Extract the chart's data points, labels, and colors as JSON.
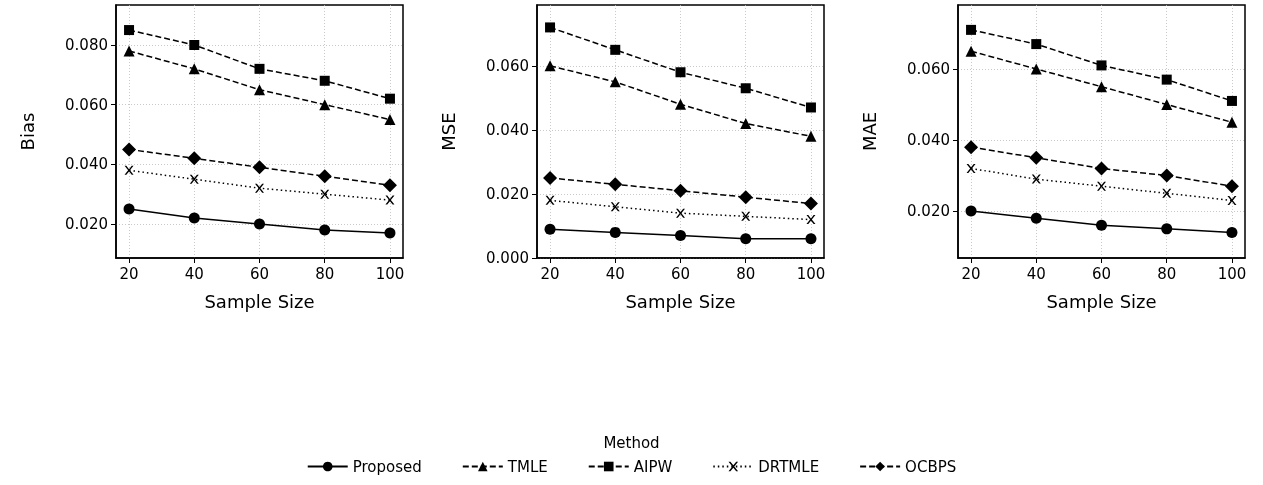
{
  "chart_data": [
    {
      "type": "line",
      "xlabel": "Sample Size",
      "ylabel": "Bias",
      "x": [
        20,
        40,
        60,
        80,
        100
      ],
      "xlim": [
        16,
        104
      ],
      "xticks": [
        20,
        40,
        60,
        80,
        100
      ],
      "ylim": [
        0.0086,
        0.0934
      ],
      "yticks": [
        {
          "value": 0.02,
          "label": "0.020"
        },
        {
          "value": 0.04,
          "label": "0.040"
        },
        {
          "value": 0.06,
          "label": "0.060"
        },
        {
          "value": 0.08,
          "label": "0.080"
        }
      ],
      "grid": true,
      "series": [
        {
          "color": "#000000",
          "marker": "circle",
          "line_style": "solid",
          "values": [
            0.025,
            0.022,
            0.02,
            0.018,
            0.017
          ]
        },
        {
          "color": "#000000",
          "marker": "triangle",
          "line_style": "dashed",
          "values": [
            0.078,
            0.072,
            0.065,
            0.06,
            0.055
          ]
        },
        {
          "color": "#000000",
          "marker": "square",
          "line_style": "dashed",
          "values": [
            0.085,
            0.08,
            0.072,
            0.068,
            0.062
          ]
        },
        {
          "color": "#000000",
          "marker": "cross",
          "line_style": "dotted",
          "values": [
            0.038,
            0.035,
            0.032,
            0.03,
            0.028
          ]
        },
        {
          "color": "#000000",
          "marker": "diamond",
          "line_style": "dashed",
          "values": [
            0.045,
            0.042,
            0.039,
            0.036,
            0.033
          ]
        }
      ]
    },
    {
      "type": "line",
      "xlabel": "Sample Size",
      "ylabel": "MSE",
      "x": [
        20,
        40,
        60,
        80,
        100
      ],
      "xlim": [
        16,
        104
      ],
      "xticks": [
        20,
        40,
        60,
        80,
        100
      ],
      "ylim": [
        0,
        0.079
      ],
      "yticks": [
        {
          "value": 0,
          "label": "0.000"
        },
        {
          "value": 0.02,
          "label": "0.020"
        },
        {
          "value": 0.04,
          "label": "0.040"
        },
        {
          "value": 0.06,
          "label": "0.060"
        }
      ],
      "grid": true,
      "legend": "bottom",
      "legend_title": "Method",
      "series": [
        {
          "name": "Proposed",
          "color": "#000000",
          "marker": "circle",
          "line_style": "solid",
          "values": [
            0.009,
            0.008,
            0.007,
            0.006,
            0.006
          ]
        },
        {
          "name": "TMLE",
          "color": "#000000",
          "marker": "triangle",
          "line_style": "dashed",
          "values": [
            0.06,
            0.055,
            0.048,
            0.042,
            0.038
          ]
        },
        {
          "name": "AIPW",
          "color": "#000000",
          "marker": "square",
          "line_style": "dashed",
          "values": [
            0.072,
            0.065,
            0.058,
            0.053,
            0.047
          ]
        },
        {
          "name": "DRTMLE",
          "color": "#000000",
          "marker": "cross",
          "line_style": "dotted",
          "values": [
            0.018,
            0.016,
            0.014,
            0.013,
            0.012
          ]
        },
        {
          "name": "OCBPS",
          "color": "#000000",
          "marker": "diamond",
          "line_style": "dashed",
          "values": [
            0.025,
            0.023,
            0.021,
            0.019,
            0.017
          ]
        }
      ]
    },
    {
      "type": "line",
      "xlabel": "Sample Size",
      "ylabel": "MAE",
      "x": [
        20,
        40,
        60,
        80,
        100
      ],
      "xlim": [
        16,
        104
      ],
      "xticks": [
        20,
        40,
        60,
        80,
        100
      ],
      "ylim": [
        0.0068,
        0.078
      ],
      "yticks": [
        {
          "value": 0.02,
          "label": "0.020"
        },
        {
          "value": 0.04,
          "label": "0.040"
        },
        {
          "value": 0.06,
          "label": "0.060"
        }
      ],
      "grid": true,
      "series": [
        {
          "color": "#000000",
          "marker": "circle",
          "line_style": "solid",
          "values": [
            0.02,
            0.018,
            0.016,
            0.015,
            0.014
          ]
        },
        {
          "color": "#000000",
          "marker": "triangle",
          "line_style": "dashed",
          "values": [
            0.065,
            0.06,
            0.055,
            0.05,
            0.045
          ]
        },
        {
          "color": "#000000",
          "marker": "square",
          "line_style": "dashed",
          "values": [
            0.071,
            0.067,
            0.061,
            0.057,
            0.051
          ]
        },
        {
          "color": "#000000",
          "marker": "cross",
          "line_style": "dotted",
          "values": [
            0.032,
            0.029,
            0.027,
            0.025,
            0.023
          ]
        },
        {
          "color": "#000000",
          "marker": "diamond",
          "line_style": "dashed",
          "values": [
            0.038,
            0.035,
            0.032,
            0.03,
            0.027
          ]
        }
      ]
    }
  ]
}
